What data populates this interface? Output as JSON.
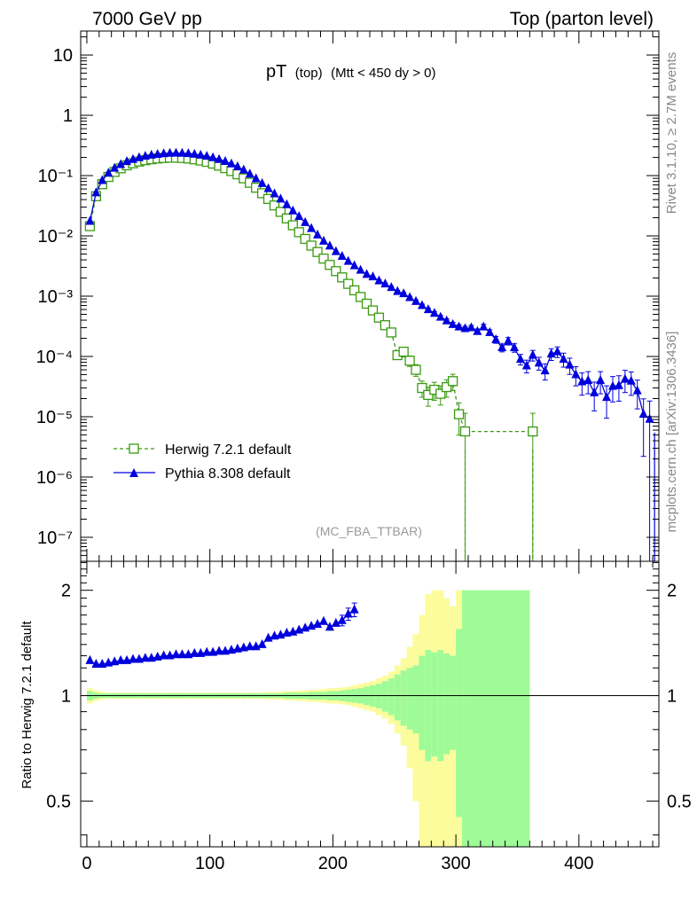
{
  "header": {
    "left": "7000 GeV pp",
    "right": "Top (parton level)"
  },
  "side_labels": {
    "rivet": "Rivet 3.1.10, ≥ 2.7M events",
    "mcplots": "mcplots.cern.ch [arXiv:1306.3436]"
  },
  "chart_data": [
    {
      "type": "line",
      "panel": "main",
      "title": "pT (top) (Mtt < 450 dy > 0)",
      "title_main": "pT",
      "title_sub": "(top)",
      "title_cut": "(Mtt < 450 dy > 0)",
      "watermark": "(MC_FBA_TTBAR)",
      "xlabel": "",
      "ylabel": "",
      "xlim": [
        -5,
        465
      ],
      "ylim": [
        4e-08,
        25
      ],
      "yscale": "log",
      "grid": false,
      "legend_position": "lower-left",
      "y_tick_labels": [
        "10",
        "1",
        "10⁻¹",
        "10⁻²",
        "10⁻³",
        "10⁻⁴",
        "10⁻⁵",
        "10⁻⁶",
        "10⁻⁷"
      ],
      "series": [
        {
          "name": "Herwig 7.2.1 default",
          "color": "#3a9a10",
          "marker": "open-square",
          "linestyle": "dashed",
          "x": [
            2.5,
            7.5,
            12.5,
            17.5,
            22.5,
            27.5,
            32.5,
            37.5,
            42.5,
            47.5,
            52.5,
            57.5,
            62.5,
            67.5,
            72.5,
            77.5,
            82.5,
            87.5,
            92.5,
            97.5,
            102.5,
            107.5,
            112.5,
            117.5,
            122.5,
            127.5,
            132.5,
            137.5,
            142.5,
            147.5,
            152.5,
            157.5,
            162.5,
            167.5,
            172.5,
            177.5,
            182.5,
            187.5,
            192.5,
            197.5,
            202.5,
            207.5,
            212.5,
            217.5,
            222.5,
            227.5,
            232.5,
            237.5,
            242.5,
            247.5,
            252.5,
            257.5,
            262.5,
            267.5,
            272.5,
            277.5,
            282.5,
            287.5,
            292.5,
            297.5,
            302.5,
            307.5,
            362.5
          ],
          "y": [
            0.0145,
            0.0455,
            0.072,
            0.095,
            0.115,
            0.132,
            0.148,
            0.16,
            0.171,
            0.18,
            0.187,
            0.192,
            0.196,
            0.198,
            0.198,
            0.196,
            0.192,
            0.186,
            0.178,
            0.169,
            0.158,
            0.146,
            0.133,
            0.119,
            0.105,
            0.09,
            0.076,
            0.063,
            0.051,
            0.041,
            0.032,
            0.025,
            0.0195,
            0.015,
            0.0115,
            0.0089,
            0.0069,
            0.0054,
            0.0042,
            0.0033,
            0.0026,
            0.00205,
            0.0016,
            0.00125,
            0.00097,
            0.00075,
            0.00058,
            0.00044,
            0.00033,
            0.00025,
            0.000105,
            0.00012,
            8.5e-05,
            6e-05,
            3e-05,
            2.3e-05,
            2.8e-05,
            2.4e-05,
            3.1e-05,
            3.9e-05,
            1.1e-05,
            5.7e-06,
            5.7e-06
          ],
          "yerr_rel": [
            0.03,
            0.02,
            0.015,
            0.015,
            0.015,
            0.015,
            0.015,
            0.015,
            0.015,
            0.015,
            0.015,
            0.015,
            0.015,
            0.015,
            0.015,
            0.015,
            0.015,
            0.015,
            0.015,
            0.015,
            0.015,
            0.015,
            0.015,
            0.015,
            0.015,
            0.015,
            0.015,
            0.015,
            0.015,
            0.015,
            0.015,
            0.015,
            0.02,
            0.02,
            0.02,
            0.02,
            0.025,
            0.025,
            0.025,
            0.03,
            0.03,
            0.035,
            0.04,
            0.045,
            0.05,
            0.06,
            0.07,
            0.08,
            0.1,
            0.12,
            0.15,
            0.18,
            0.2,
            0.22,
            0.3,
            0.35,
            0.33,
            0.35,
            0.32,
            0.3,
            0.55,
            1.0,
            1.0
          ]
        },
        {
          "name": "Pythia 8.308 default",
          "color": "#0000dd",
          "marker": "filled-triangle",
          "linestyle": "solid",
          "x": [
            2.5,
            7.5,
            12.5,
            17.5,
            22.5,
            27.5,
            32.5,
            37.5,
            42.5,
            47.5,
            52.5,
            57.5,
            62.5,
            67.5,
            72.5,
            77.5,
            82.5,
            87.5,
            92.5,
            97.5,
            102.5,
            107.5,
            112.5,
            117.5,
            122.5,
            127.5,
            132.5,
            137.5,
            142.5,
            147.5,
            152.5,
            157.5,
            162.5,
            167.5,
            172.5,
            177.5,
            182.5,
            187.5,
            192.5,
            197.5,
            202.5,
            207.5,
            212.5,
            217.5,
            222.5,
            227.5,
            232.5,
            237.5,
            242.5,
            247.5,
            252.5,
            257.5,
            262.5,
            267.5,
            272.5,
            277.5,
            282.5,
            287.5,
            292.5,
            297.5,
            302.5,
            307.5,
            312.5,
            317.5,
            322.5,
            327.5,
            332.5,
            337.5,
            342.5,
            347.5,
            352.5,
            357.5,
            362.5,
            367.5,
            372.5,
            377.5,
            382.5,
            387.5,
            392.5,
            397.5,
            402.5,
            407.5,
            412.5,
            417.5,
            422.5,
            427.5,
            432.5,
            437.5,
            442.5,
            447.5,
            452.5,
            457.5
          ],
          "y": [
            0.0175,
            0.052,
            0.083,
            0.11,
            0.133,
            0.153,
            0.171,
            0.186,
            0.199,
            0.21,
            0.219,
            0.226,
            0.231,
            0.235,
            0.236,
            0.235,
            0.232,
            0.227,
            0.219,
            0.21,
            0.199,
            0.186,
            0.172,
            0.157,
            0.141,
            0.124,
            0.106,
            0.089,
            0.074,
            0.061,
            0.05,
            0.041,
            0.033,
            0.026,
            0.021,
            0.0167,
            0.0133,
            0.0104,
            0.0082,
            0.0068,
            0.0055,
            0.0046,
            0.0038,
            0.0032,
            0.0027,
            0.0023,
            0.0021,
            0.0018,
            0.0016,
            0.0014,
            0.0012,
            0.0011,
            0.00095,
            0.00082,
            0.0007,
            0.0006,
            0.00052,
            0.00045,
            0.00039,
            0.00034,
            0.00031,
            0.00029,
            0.0003,
            0.00026,
            0.00031,
            0.00025,
            0.00019,
            0.00014,
            0.00018,
            0.00014,
            9e-05,
            7e-05,
            0.000105,
            7.8e-05,
            5.8e-05,
            0.00011,
            0.00012,
            9e-05,
            7.2e-05,
            5e-05,
            3.8e-05,
            4e-05,
            2.5e-05,
            4e-05,
            2.1e-05,
            3.2e-05,
            3.3e-05,
            4.2e-05,
            3.9e-05,
            2.7e-05,
            1.1e-05,
            9.1e-06
          ],
          "yerr_rel": [
            0.03,
            0.02,
            0.015,
            0.015,
            0.015,
            0.015,
            0.015,
            0.015,
            0.015,
            0.015,
            0.015,
            0.015,
            0.015,
            0.015,
            0.015,
            0.015,
            0.015,
            0.015,
            0.015,
            0.015,
            0.015,
            0.015,
            0.015,
            0.015,
            0.015,
            0.015,
            0.015,
            0.015,
            0.015,
            0.015,
            0.015,
            0.015,
            0.015,
            0.015,
            0.015,
            0.015,
            0.02,
            0.02,
            0.02,
            0.02,
            0.02,
            0.025,
            0.025,
            0.025,
            0.03,
            0.03,
            0.03,
            0.035,
            0.035,
            0.04,
            0.04,
            0.045,
            0.05,
            0.05,
            0.055,
            0.06,
            0.065,
            0.07,
            0.075,
            0.08,
            0.085,
            0.09,
            0.09,
            0.1,
            0.1,
            0.11,
            0.13,
            0.15,
            0.14,
            0.16,
            0.2,
            0.24,
            0.2,
            0.24,
            0.3,
            0.22,
            0.2,
            0.26,
            0.3,
            0.35,
            0.4,
            0.4,
            0.5,
            0.4,
            0.55,
            0.45,
            0.45,
            0.4,
            0.42,
            0.5,
            0.8,
            1.0
          ]
        }
      ]
    },
    {
      "type": "line",
      "panel": "ratio",
      "ylabel": "Ratio to Herwig 7.2.1 default",
      "xlim": [
        -5,
        465
      ],
      "ylim": [
        0.37,
        2.42
      ],
      "yscale": "log",
      "x_tick_labels": [
        "0",
        "100",
        "200",
        "300",
        "400"
      ],
      "y_tick_labels": [
        "0.5",
        "1",
        "2"
      ],
      "reference_line": 1,
      "bands": {
        "edges": [
          0,
          5,
          10,
          15,
          20,
          25,
          30,
          35,
          40,
          45,
          50,
          55,
          60,
          65,
          70,
          75,
          80,
          85,
          90,
          95,
          100,
          105,
          110,
          115,
          120,
          125,
          130,
          135,
          140,
          145,
          150,
          155,
          160,
          165,
          170,
          175,
          180,
          185,
          190,
          195,
          200,
          205,
          210,
          215,
          220,
          225,
          230,
          235,
          240,
          245,
          250,
          255,
          260,
          265,
          270,
          275,
          280,
          285,
          290,
          295,
          300,
          305,
          310,
          360,
          365
        ],
        "stat_rel": [
          0.03,
          0.02,
          0.015,
          0.015,
          0.015,
          0.015,
          0.015,
          0.015,
          0.015,
          0.015,
          0.015,
          0.015,
          0.015,
          0.015,
          0.015,
          0.015,
          0.015,
          0.015,
          0.015,
          0.015,
          0.015,
          0.015,
          0.015,
          0.015,
          0.015,
          0.015,
          0.015,
          0.015,
          0.015,
          0.015,
          0.015,
          0.015,
          0.02,
          0.02,
          0.02,
          0.02,
          0.025,
          0.025,
          0.025,
          0.03,
          0.03,
          0.035,
          0.04,
          0.045,
          0.05,
          0.06,
          0.07,
          0.08,
          0.1,
          0.12,
          0.15,
          0.18,
          0.2,
          0.22,
          0.3,
          0.35,
          0.33,
          0.35,
          0.32,
          0.3,
          0.55,
          1.0,
          1.0
        ],
        "total_rel": [
          0.05,
          0.035,
          0.025,
          0.02,
          0.02,
          0.02,
          0.02,
          0.02,
          0.02,
          0.02,
          0.02,
          0.02,
          0.02,
          0.02,
          0.02,
          0.02,
          0.02,
          0.02,
          0.02,
          0.02,
          0.02,
          0.02,
          0.02,
          0.02,
          0.02,
          0.02,
          0.02,
          0.02,
          0.02,
          0.025,
          0.025,
          0.025,
          0.03,
          0.03,
          0.035,
          0.035,
          0.04,
          0.04,
          0.045,
          0.05,
          0.05,
          0.055,
          0.06,
          0.07,
          0.08,
          0.09,
          0.1,
          0.12,
          0.14,
          0.17,
          0.22,
          0.28,
          0.38,
          0.5,
          0.7,
          0.95,
          1.0,
          1.0,
          0.9,
          0.8,
          1.0,
          1.0,
          1.0
        ],
        "stat_color": "#9efb98",
        "total_color": "#fcfc9c"
      },
      "series": [
        {
          "name": "Pythia 8.308 default",
          "color": "#0000dd",
          "marker": "filled-triangle",
          "x": [
            2.5,
            7.5,
            12.5,
            17.5,
            22.5,
            27.5,
            32.5,
            37.5,
            42.5,
            47.5,
            52.5,
            57.5,
            62.5,
            67.5,
            72.5,
            77.5,
            82.5,
            87.5,
            92.5,
            97.5,
            102.5,
            107.5,
            112.5,
            117.5,
            122.5,
            127.5,
            132.5,
            137.5,
            142.5,
            147.5,
            152.5,
            157.5,
            162.5,
            167.5,
            172.5,
            177.5,
            182.5,
            187.5,
            192.5,
            197.5,
            202.5,
            207.5,
            212.5,
            217.5
          ],
          "y": [
            1.26,
            1.23,
            1.23,
            1.24,
            1.25,
            1.26,
            1.26,
            1.27,
            1.27,
            1.28,
            1.28,
            1.29,
            1.3,
            1.3,
            1.31,
            1.31,
            1.31,
            1.32,
            1.32,
            1.33,
            1.33,
            1.34,
            1.34,
            1.35,
            1.36,
            1.37,
            1.38,
            1.38,
            1.4,
            1.46,
            1.48,
            1.49,
            1.51,
            1.52,
            1.54,
            1.56,
            1.58,
            1.6,
            1.63,
            1.57,
            1.61,
            1.64,
            1.71,
            1.76
          ],
          "yerr_rel": [
            0.01,
            0.01,
            0.01,
            0.01,
            0.01,
            0.01,
            0.01,
            0.01,
            0.01,
            0.01,
            0.01,
            0.01,
            0.01,
            0.01,
            0.01,
            0.01,
            0.01,
            0.01,
            0.01,
            0.01,
            0.01,
            0.01,
            0.01,
            0.01,
            0.01,
            0.01,
            0.01,
            0.01,
            0.01,
            0.012,
            0.012,
            0.014,
            0.014,
            0.016,
            0.016,
            0.018,
            0.02,
            0.022,
            0.025,
            0.03,
            0.03,
            0.035,
            0.04,
            0.045
          ]
        }
      ]
    }
  ]
}
